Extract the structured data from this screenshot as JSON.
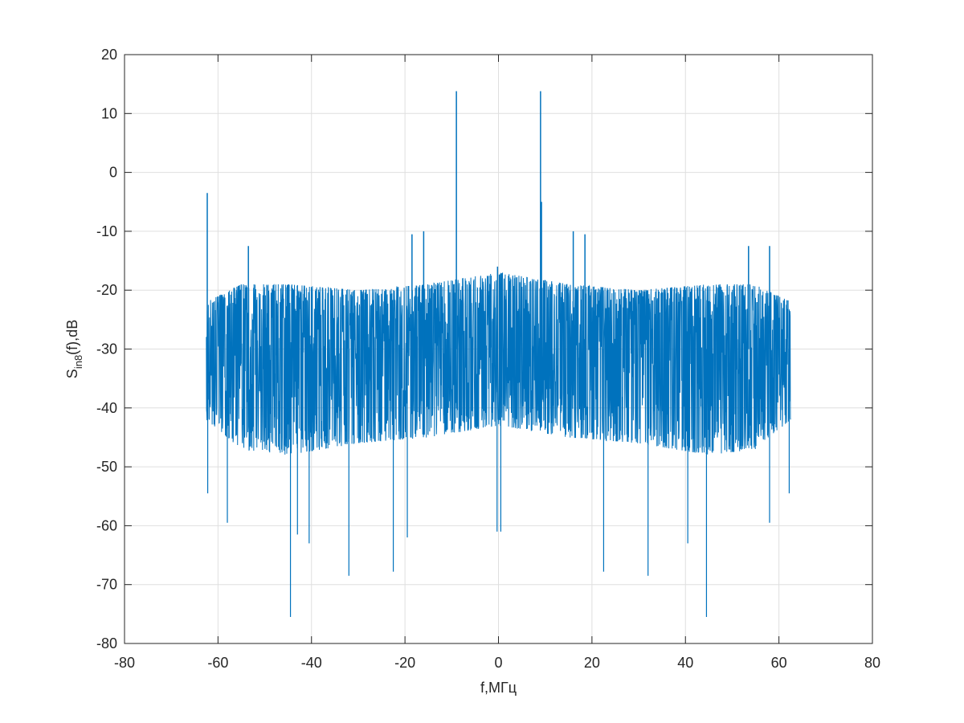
{
  "figure": {
    "xlabel": "f,МГц",
    "ylabel_main": "S",
    "ylabel_sub": "in8",
    "ylabel_tail": "(f),dB"
  },
  "chart_data": {
    "type": "line",
    "title": "",
    "xlabel": "f,МГц",
    "ylabel": "S_in8(f),dB",
    "xlim": [
      -80,
      80
    ],
    "ylim": [
      -80,
      20
    ],
    "grid": true,
    "legend": "none",
    "line_color": "#0072bd",
    "x_ticks": [
      -80,
      -60,
      -40,
      -20,
      0,
      20,
      40,
      60,
      80
    ],
    "x_tick_labels": [
      "-80",
      "-60",
      "-40",
      "-20",
      "0",
      "20",
      "40",
      "60",
      "80"
    ],
    "y_ticks": [
      -80,
      -70,
      -60,
      -50,
      -40,
      -30,
      -20,
      -10,
      0,
      10,
      20
    ],
    "y_tick_labels": [
      "-80",
      "-70",
      "-60",
      "-50",
      "-40",
      "-30",
      "-20",
      "-10",
      "0",
      "10",
      "20"
    ],
    "series": [
      {
        "f_range": [
          -62.5,
          62.5
        ],
        "noise_floor_mean": -30,
        "noise_upper_envelope": [
          [
            -62.5,
            -22
          ],
          [
            -55,
            -19
          ],
          [
            -45,
            -19
          ],
          [
            -30,
            -20
          ],
          [
            -15,
            -19
          ],
          [
            -8,
            -18
          ],
          [
            0,
            -17
          ],
          [
            8,
            -18
          ],
          [
            15,
            -19
          ],
          [
            30,
            -20
          ],
          [
            45,
            -19
          ],
          [
            55,
            -19
          ],
          [
            62.5,
            -22
          ]
        ],
        "noise_lower_envelope": [
          [
            -62.5,
            -42
          ],
          [
            -55,
            -47
          ],
          [
            -45,
            -48
          ],
          [
            -30,
            -46
          ],
          [
            -15,
            -45
          ],
          [
            0,
            -43
          ],
          [
            15,
            -45
          ],
          [
            30,
            -46
          ],
          [
            45,
            -48
          ],
          [
            55,
            -47
          ],
          [
            62.5,
            -42
          ]
        ],
        "peaks": [
          [
            -62.3,
            -3.5
          ],
          [
            -9.0,
            13.8
          ],
          [
            9.0,
            13.8
          ],
          [
            9.2,
            -5
          ],
          [
            -18.5,
            -10.5
          ],
          [
            -16,
            -10
          ],
          [
            16,
            -10
          ],
          [
            18.5,
            -10.5
          ],
          [
            -53.5,
            -12.5
          ],
          [
            -0.2,
            -16
          ],
          [
            53.5,
            -12.5
          ],
          [
            58,
            -12.5
          ]
        ],
        "dips": [
          [
            -62.2,
            -54.5
          ],
          [
            -58,
            -59.5
          ],
          [
            -44.5,
            -75.5
          ],
          [
            -43,
            -61.5
          ],
          [
            -40.5,
            -63
          ],
          [
            -32,
            -68.5
          ],
          [
            -22.5,
            -67.8
          ],
          [
            -19.5,
            -62
          ],
          [
            -0.3,
            -61
          ],
          [
            0.5,
            -61
          ],
          [
            22.5,
            -67.8
          ],
          [
            32,
            -68.5
          ],
          [
            40.5,
            -63
          ],
          [
            44.5,
            -75.5
          ],
          [
            58,
            -59.5
          ],
          [
            62.2,
            -54.5
          ]
        ]
      }
    ]
  }
}
